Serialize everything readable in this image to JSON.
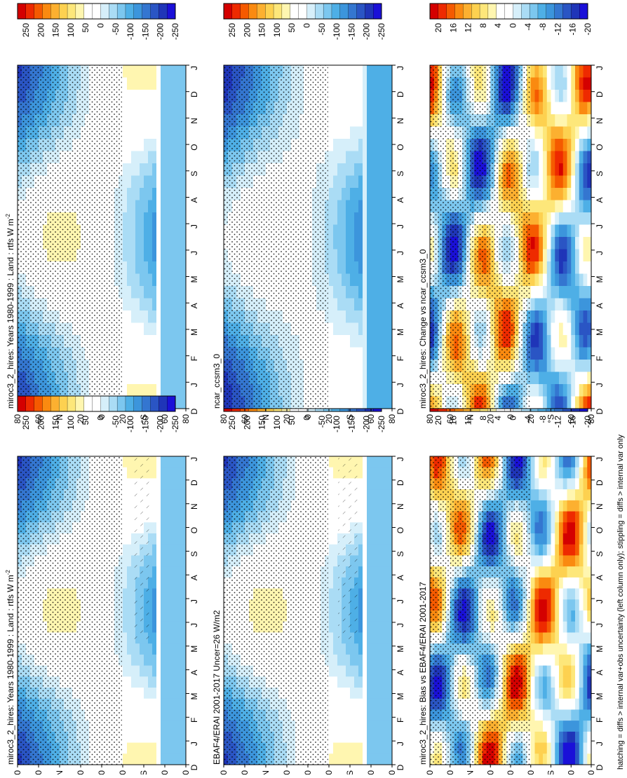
{
  "chart_data": [
    {
      "type": "heatmap",
      "title": "miroc3_2_hires: Years 1980-1999 : Land : rtfs W m",
      "title_sup": "-2",
      "x_ticks": [
        "D",
        "J",
        "F",
        "M",
        "A",
        "M",
        "J",
        "J",
        "A",
        "S",
        "O",
        "N",
        "D",
        "J"
      ],
      "y_ticks": [
        "80",
        "60",
        "°N",
        "20",
        "0",
        "20",
        "°S",
        "60",
        "80"
      ],
      "colorbar_labels": [
        "250",
        "200",
        "150",
        "100",
        "50",
        "0",
        "-50",
        "-100",
        "-150",
        "-200",
        "-250"
      ],
      "colorbar_colors": [
        "#d40000",
        "#ee2a00",
        "#f55a00",
        "#fa8a10",
        "#fcb030",
        "#fdd150",
        "#fde77a",
        "#fff6b0",
        "#ffffff",
        "#ffffff",
        "#d6effa",
        "#aadcf5",
        "#7cc7ef",
        "#4eafe6",
        "#3c95dc",
        "#3476d0",
        "#2a55c4",
        "#1f35b8",
        "#1a10d8"
      ]
    },
    {
      "type": "heatmap",
      "title": "miroc3_2_hires: Years 1980-1999 : Land : rtfs W m",
      "title_sup": "-2",
      "x_ticks": [
        "D",
        "J",
        "F",
        "M",
        "A",
        "M",
        "J",
        "J",
        "A",
        "S",
        "O",
        "N",
        "D",
        "J"
      ],
      "y_ticks": [
        "80",
        "60",
        "°N",
        "20",
        "0",
        "20",
        "°S",
        "60",
        "80"
      ],
      "colorbar_labels": [
        "250",
        "200",
        "150",
        "100",
        "50",
        "0",
        "-50",
        "-100",
        "-150",
        "-200",
        "-250"
      ],
      "colorbar_colors": [
        "#d40000",
        "#ee2a00",
        "#f55a00",
        "#fa8a10",
        "#fcb030",
        "#fdd150",
        "#fde77a",
        "#fff6b0",
        "#ffffff",
        "#ffffff",
        "#d6effa",
        "#aadcf5",
        "#7cc7ef",
        "#4eafe6",
        "#3c95dc",
        "#3476d0",
        "#2a55c4",
        "#1f35b8",
        "#1a10d8"
      ]
    },
    {
      "type": "heatmap",
      "title": "EBAF4/ERAI 2001-2017 Uncer=26 W/m2",
      "title_sup": "",
      "x_ticks": [
        "D",
        "J",
        "F",
        "M",
        "A",
        "M",
        "J",
        "J",
        "A",
        "S",
        "O",
        "N",
        "D",
        "J"
      ],
      "y_ticks": [
        "80",
        "60",
        "°N",
        "20",
        "0",
        "20",
        "°S",
        "60",
        "80"
      ],
      "colorbar_labels": [
        "250",
        "200",
        "150",
        "100",
        "50",
        "0",
        "-50",
        "-100",
        "-150",
        "-200",
        "-250"
      ],
      "colorbar_colors": [
        "#d40000",
        "#ee2a00",
        "#f55a00",
        "#fa8a10",
        "#fcb030",
        "#fdd150",
        "#fde77a",
        "#fff6b0",
        "#ffffff",
        "#ffffff",
        "#d6effa",
        "#aadcf5",
        "#7cc7ef",
        "#4eafe6",
        "#3c95dc",
        "#3476d0",
        "#2a55c4",
        "#1f35b8",
        "#1a10d8"
      ]
    },
    {
      "type": "heatmap",
      "title": "ncar_ccsm3_0",
      "title_sup": "",
      "x_ticks": [
        "D",
        "J",
        "F",
        "M",
        "A",
        "M",
        "J",
        "J",
        "A",
        "S",
        "O",
        "N",
        "D",
        "J"
      ],
      "y_ticks": [
        "80",
        "60",
        "°N",
        "20",
        "0",
        "20",
        "°S",
        "60",
        "80"
      ],
      "colorbar_labels": [
        "250",
        "200",
        "150",
        "100",
        "50",
        "0",
        "-50",
        "-100",
        "-150",
        "-200",
        "-250"
      ],
      "colorbar_colors": [
        "#d40000",
        "#ee2a00",
        "#f55a00",
        "#fa8a10",
        "#fcb030",
        "#fdd150",
        "#fde77a",
        "#fff6b0",
        "#ffffff",
        "#ffffff",
        "#d6effa",
        "#aadcf5",
        "#7cc7ef",
        "#4eafe6",
        "#3c95dc",
        "#3476d0",
        "#2a55c4",
        "#1f35b8",
        "#1a10d8"
      ]
    },
    {
      "type": "heatmap",
      "title": "miroc3_2_hires: Bias vs EBAF4/ERAI 2001-2017",
      "title_sup": "",
      "x_ticks": [
        "D",
        "J",
        "F",
        "M",
        "A",
        "M",
        "J",
        "J",
        "A",
        "S",
        "O",
        "N",
        "D",
        "J"
      ],
      "y_ticks": [
        "80",
        "60",
        "°N",
        "20",
        "0",
        "20",
        "°S",
        "60",
        "80"
      ],
      "colorbar_labels": [
        "20",
        "16",
        "12",
        "8",
        "4",
        "0",
        "-4",
        "-8",
        "-12",
        "-16",
        "-20"
      ],
      "colorbar_colors": [
        "#d40000",
        "#ee2a00",
        "#f55a00",
        "#fa8a10",
        "#fcb030",
        "#fdd150",
        "#fde77a",
        "#fff6b0",
        "#ffffff",
        "#ffffff",
        "#d6effa",
        "#aadcf5",
        "#7cc7ef",
        "#4eafe6",
        "#3c95dc",
        "#3476d0",
        "#2a55c4",
        "#1f35b8",
        "#1a10d8"
      ]
    },
    {
      "type": "heatmap",
      "title": "miroc3_2_hires: Change vs ncar_ccsm3_0",
      "title_sup": "",
      "x_ticks": [
        "D",
        "J",
        "F",
        "M",
        "A",
        "M",
        "J",
        "J",
        "A",
        "S",
        "O",
        "N",
        "D",
        "J"
      ],
      "y_ticks": [
        "80",
        "60",
        "°N",
        "20",
        "0",
        "20",
        "°S",
        "60",
        "80"
      ],
      "colorbar_labels": [
        "20",
        "16",
        "12",
        "8",
        "4",
        "0",
        "-4",
        "-8",
        "-12",
        "-16",
        "-20"
      ],
      "colorbar_colors": [
        "#d40000",
        "#ee2a00",
        "#f55a00",
        "#fa8a10",
        "#fcb030",
        "#fdd150",
        "#fde77a",
        "#fff6b0",
        "#ffffff",
        "#ffffff",
        "#d6effa",
        "#aadcf5",
        "#7cc7ef",
        "#4eafe6",
        "#3c95dc",
        "#3476d0",
        "#2a55c4",
        "#1f35b8",
        "#1a10d8"
      ]
    }
  ],
  "footnote": "hatching = diffs > internal var+obs uncertainty (left column only); stippling = diffs > internal var only"
}
